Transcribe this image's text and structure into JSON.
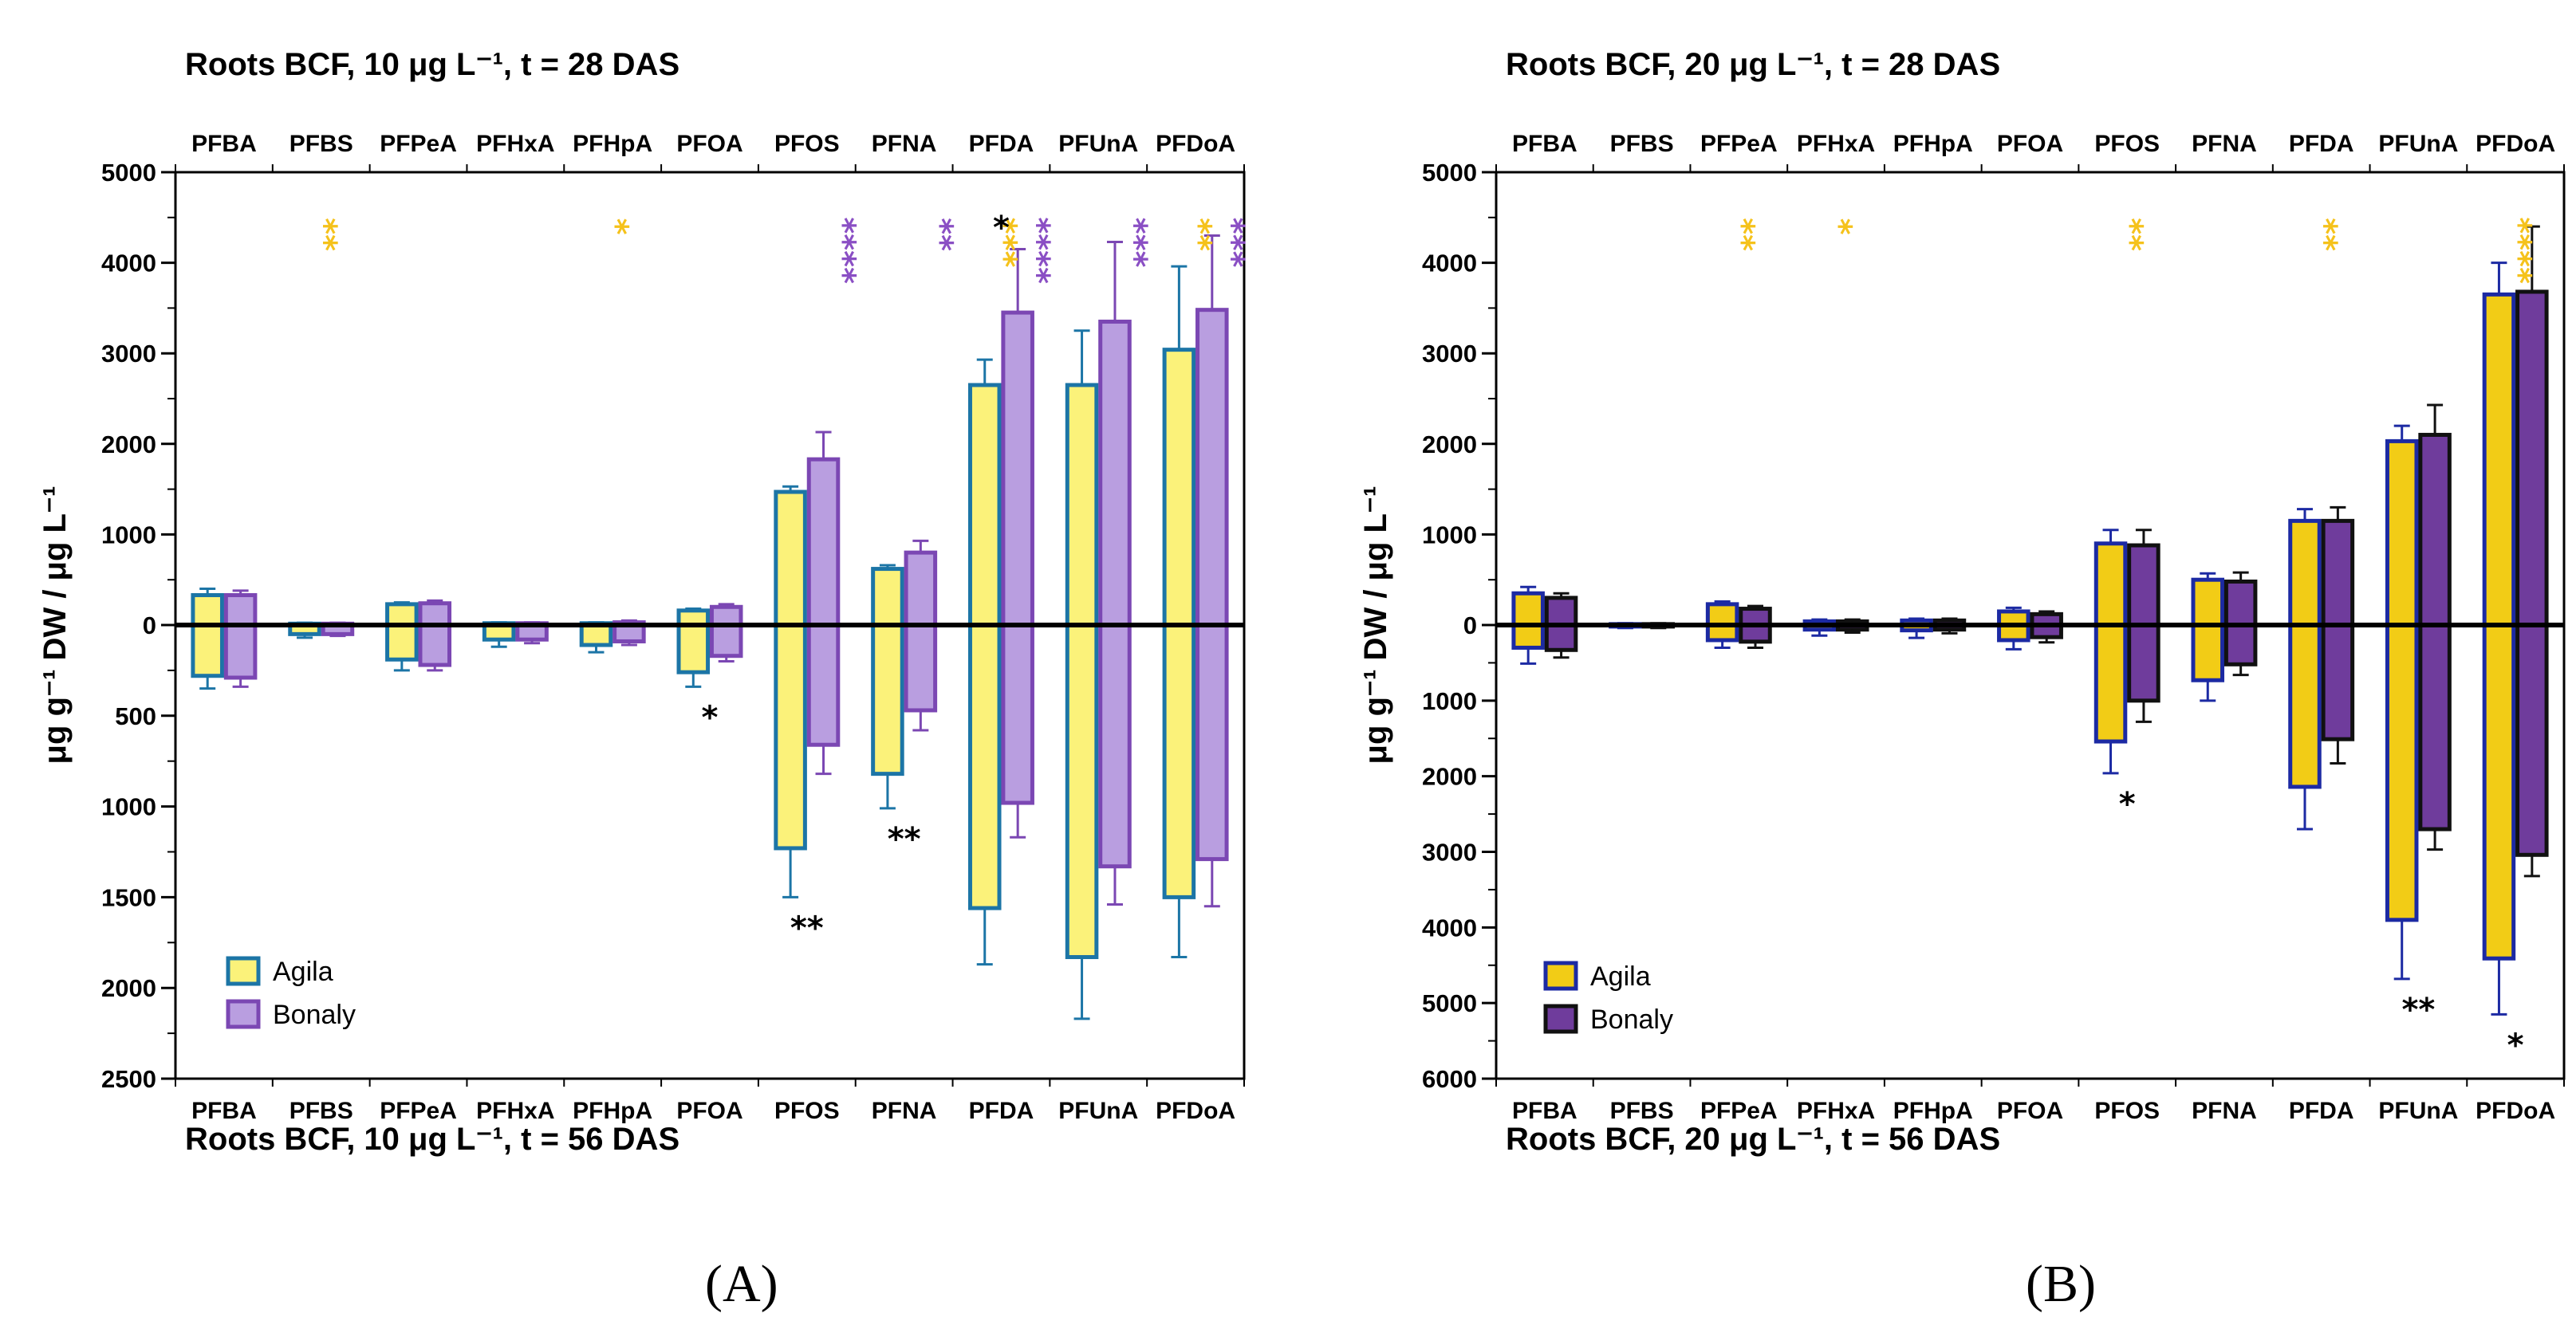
{
  "chart_data": [
    {
      "type": "bar",
      "panel_label": "(A)",
      "title_top": "Roots BCF, 10 μg L⁻¹, t = 28 DAS",
      "title_bottom": "Roots BCF, 10 μg L⁻¹, t = 56 DAS",
      "ylabel": "μg g⁻¹ DW / μg L⁻¹",
      "categories": [
        "PFBA",
        "PFBS",
        "PFPeA",
        "PFHxA",
        "PFHpA",
        "PFOA",
        "PFOS",
        "PFNA",
        "PFDA",
        "PFUnA",
        "PFDoA"
      ],
      "ylim_top": [
        0,
        5000
      ],
      "ylim_bottom": [
        0,
        2500
      ],
      "yticks_top": [
        "5000",
        "4000",
        "3000",
        "2000",
        "1000"
      ],
      "yticks_bottom": [
        "0",
        "500",
        "1000",
        "1500",
        "2000",
        "2500"
      ],
      "legend_position": "bottom-left",
      "series": [
        {
          "name": "Agila",
          "fill": "#fbf27a",
          "edge": "#1c75a6",
          "top_values": [
            330,
            15,
            230,
            20,
            20,
            160,
            1470,
            620,
            2650,
            2650,
            3040
          ],
          "top_err": [
            400,
            25,
            250,
            30,
            30,
            180,
            1530,
            660,
            2930,
            3250,
            3960
          ],
          "bottom_values": [
            280,
            50,
            190,
            80,
            110,
            260,
            1230,
            820,
            1560,
            1830,
            1500
          ],
          "bottom_err": [
            350,
            70,
            250,
            120,
            150,
            340,
            1500,
            1010,
            1870,
            2170,
            1830
          ]
        },
        {
          "name": "Bonaly",
          "fill": "#b99ee0",
          "edge": "#7b47b3",
          "top_values": [
            330,
            15,
            240,
            20,
            30,
            200,
            1830,
            800,
            3450,
            3350,
            3480
          ],
          "top_err": [
            380,
            25,
            270,
            30,
            50,
            230,
            2130,
            930,
            4150,
            4230,
            4300
          ],
          "bottom_values": [
            290,
            50,
            220,
            80,
            90,
            170,
            660,
            470,
            980,
            1330,
            1290
          ],
          "bottom_err": [
            340,
            60,
            250,
            100,
            110,
            200,
            820,
            580,
            1170,
            1540,
            1550
          ]
        }
      ],
      "significance_top": [
        {
          "category": "PFBS",
          "series": "Agila",
          "stars": "**"
        },
        {
          "category": "PFHpA",
          "series": "Agila",
          "stars": "*"
        },
        {
          "category": "PFOS",
          "series": "Bonaly",
          "stars": "****"
        },
        {
          "category": "PFNA",
          "series": "Bonaly",
          "stars": "**"
        },
        {
          "category": "PFDA",
          "series": "Agila",
          "stars": "***"
        },
        {
          "category": "PFDA",
          "series": "between",
          "stars": "*"
        },
        {
          "category": "PFDA",
          "series": "Bonaly",
          "stars": "****"
        },
        {
          "category": "PFUnA",
          "series": "Bonaly",
          "stars": "***"
        },
        {
          "category": "PFDoA",
          "series": "Agila",
          "stars": "**"
        },
        {
          "category": "PFDoA",
          "series": "Bonaly",
          "stars": "***"
        }
      ],
      "significance_bottom": [
        {
          "category": "PFOA",
          "stars": "*"
        },
        {
          "category": "PFOS",
          "stars": "**"
        },
        {
          "category": "PFNA",
          "stars": "**"
        }
      ]
    },
    {
      "type": "bar",
      "panel_label": "(B)",
      "title_top": "Roots BCF, 20 μg L⁻¹, t = 28 DAS",
      "title_bottom": "Roots BCF, 20 μg L⁻¹, t = 56 DAS",
      "ylabel": "μg g⁻¹ DW / μg L⁻¹",
      "categories": [
        "PFBA",
        "PFBS",
        "PFPeA",
        "PFHxA",
        "PFHpA",
        "PFOA",
        "PFOS",
        "PFNA",
        "PFDA",
        "PFUnA",
        "PFDoA"
      ],
      "ylim_top": [
        0,
        5000
      ],
      "ylim_bottom": [
        0,
        6000
      ],
      "yticks_top": [
        "5000",
        "4000",
        "3000",
        "2000",
        "1000"
      ],
      "yticks_bottom": [
        "0",
        "1000",
        "2000",
        "3000",
        "4000",
        "5000",
        "6000"
      ],
      "legend_position": "bottom-left",
      "series": [
        {
          "name": "Agila",
          "fill": "#f2cc16",
          "edge": "#1c2aa3",
          "top_values": [
            350,
            10,
            230,
            40,
            50,
            150,
            900,
            500,
            1150,
            2030,
            3650
          ],
          "top_err": [
            420,
            20,
            260,
            60,
            70,
            190,
            1050,
            570,
            1280,
            2200,
            4000
          ],
          "bottom_values": [
            300,
            20,
            200,
            60,
            70,
            200,
            1540,
            730,
            2140,
            3900,
            4410
          ],
          "bottom_err": [
            510,
            40,
            300,
            140,
            170,
            320,
            1960,
            1000,
            2700,
            4680,
            5150
          ]
        },
        {
          "name": "Bonaly",
          "fill": "#6f3c9c",
          "edge": "#111111",
          "top_values": [
            300,
            10,
            180,
            40,
            50,
            120,
            880,
            480,
            1150,
            2100,
            3680
          ],
          "top_err": [
            350,
            20,
            210,
            60,
            70,
            150,
            1050,
            580,
            1300,
            2430,
            4400
          ],
          "bottom_values": [
            330,
            20,
            220,
            60,
            60,
            160,
            1000,
            520,
            1510,
            2700,
            3040
          ],
          "bottom_err": [
            430,
            40,
            300,
            100,
            110,
            230,
            1280,
            660,
            1830,
            2970,
            3320
          ]
        }
      ],
      "significance_top": [
        {
          "category": "PFPeA",
          "series": "Agila",
          "stars": "**"
        },
        {
          "category": "PFHxA",
          "series": "Agila",
          "stars": "*"
        },
        {
          "category": "PFOS",
          "series": "Agila",
          "stars": "**"
        },
        {
          "category": "PFDA",
          "series": "Agila",
          "stars": "**"
        },
        {
          "category": "PFDoA",
          "series": "Agila",
          "stars": "****"
        }
      ],
      "significance_bottom": [
        {
          "category": "PFOS",
          "stars": "*"
        },
        {
          "category": "PFUnA",
          "stars": "**"
        },
        {
          "category": "PFDoA",
          "stars": "*"
        }
      ]
    }
  ]
}
